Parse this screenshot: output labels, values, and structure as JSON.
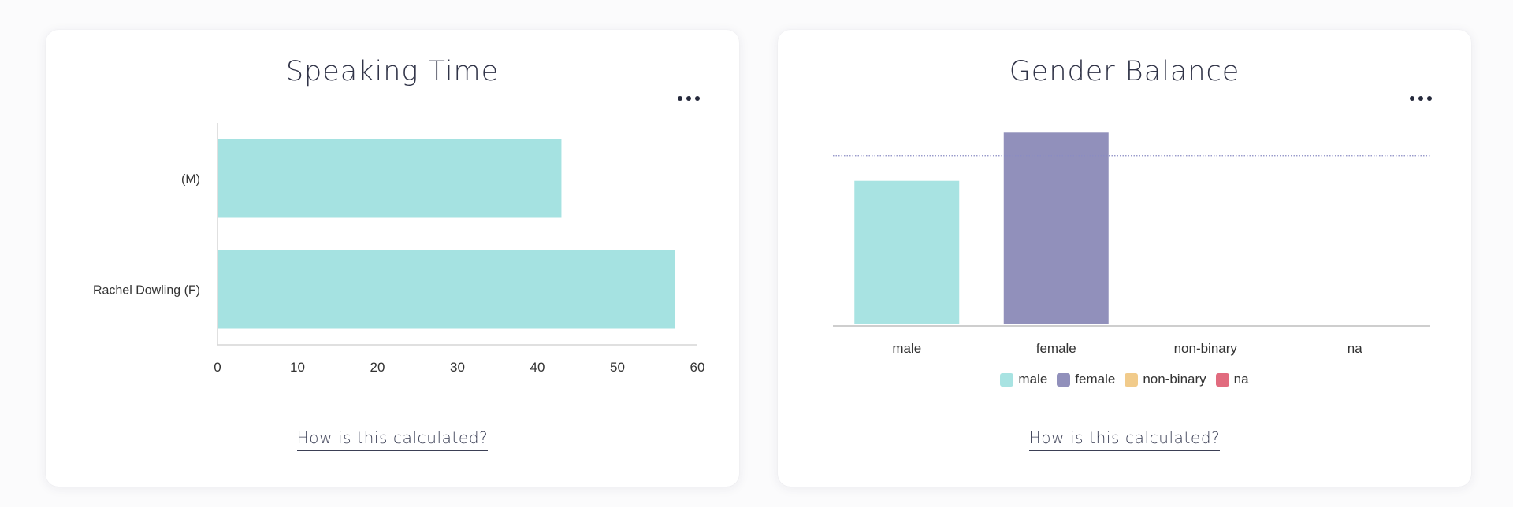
{
  "cards": {
    "speaking": {
      "title": "Speaking Time",
      "link": "How is this calculated?"
    },
    "gender": {
      "title": "Gender Balance",
      "link": "How is this calculated?"
    }
  },
  "colors": {
    "male": "#a8e3e2",
    "female": "#9190bb",
    "non_binary": "#f1cb8b",
    "na": "#e16b7e",
    "gradient_start": "#f1cb8b",
    "gradient_end": "#a5e2e1"
  },
  "chart_data": [
    {
      "type": "bar",
      "orientation": "horizontal",
      "title": "Speaking Time",
      "categories": [
        "⁠(M)",
        "Rachel Dowling (F)"
      ],
      "category_labels_visible": [
        "(M)",
        "Rachel Dowling (F)"
      ],
      "values": [
        43,
        57.2
      ],
      "xlim": [
        0,
        60
      ],
      "xticks": [
        "0",
        "10",
        "20",
        "30",
        "40",
        "50",
        "60"
      ],
      "grid": false
    },
    {
      "type": "bar",
      "title": "Gender Balance",
      "categories": [
        "male",
        "female",
        "non-binary",
        "na"
      ],
      "values": [
        30,
        40,
        0,
        0
      ],
      "ylim": [
        0,
        42
      ],
      "reference_line": 35.2,
      "legend": [
        "male",
        "female",
        "non-binary",
        "na"
      ],
      "legend_position": "bottom",
      "grid": false
    }
  ]
}
